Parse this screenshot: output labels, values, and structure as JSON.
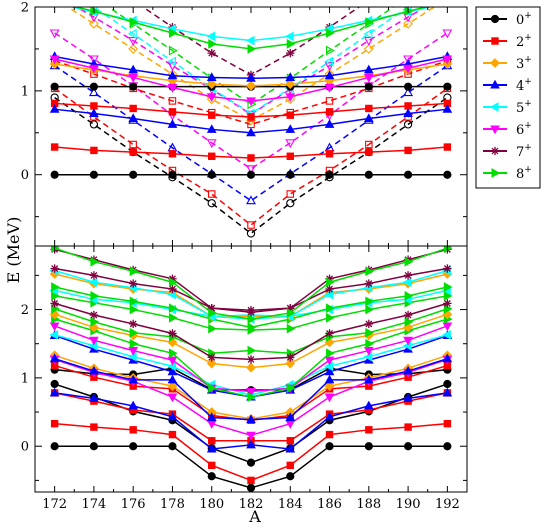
{
  "chart_data": {
    "type": "line",
    "ylabel": "E (MeV)",
    "xlabel": "A",
    "x": [
      172,
      174,
      176,
      178,
      180,
      182,
      184,
      186,
      188,
      190,
      192
    ],
    "x_ticks": [
      "172",
      "174",
      "176",
      "178",
      "180",
      "182",
      "184",
      "186",
      "188",
      "190",
      "192"
    ],
    "legend": {
      "placement": "top-right",
      "entries": [
        {
          "base": "0",
          "sup": "+",
          "color": "#000000",
          "marker": "circle"
        },
        {
          "base": "2",
          "sup": "+",
          "color": "#ff0000",
          "marker": "square"
        },
        {
          "base": "3",
          "sup": "+",
          "color": "#ffa500",
          "marker": "diamond"
        },
        {
          "base": "4",
          "sup": "+",
          "color": "#0000ff",
          "marker": "triangle-up"
        },
        {
          "base": "5",
          "sup": "+",
          "color": "#00ffff",
          "marker": "triangle-left"
        },
        {
          "base": "6",
          "sup": "+",
          "color": "#ff00ff",
          "marker": "triangle-down"
        },
        {
          "base": "7",
          "sup": "+",
          "color": "#800040",
          "marker": "star"
        },
        {
          "base": "8",
          "sup": "+",
          "color": "#00dd00",
          "marker": "triangle-right"
        }
      ]
    },
    "panels": [
      {
        "name": "top",
        "ylim": [
          -0.85,
          2.0
        ],
        "y_ticks": [
          0,
          1,
          2
        ],
        "solid_series": [
          {
            "spin": "0+",
            "values": [
              0,
              0,
              0,
              0,
              0,
              0,
              0,
              0,
              0,
              0,
              0
            ]
          },
          {
            "spin": "2+",
            "values": [
              0.33,
              0.29,
              0.27,
              0.25,
              0.22,
              0.2,
              0.22,
              0.25,
              0.27,
              0.29,
              0.33
            ]
          },
          {
            "spin": "0+",
            "values": [
              1.05,
              1.05,
              1.05,
              1.05,
              1.05,
              1.05,
              1.05,
              1.05,
              1.05,
              1.05,
              1.05
            ]
          },
          {
            "spin": "2+",
            "values": [
              0.85,
              0.82,
              0.79,
              0.75,
              0.71,
              0.69,
              0.71,
              0.75,
              0.79,
              0.82,
              0.85
            ]
          },
          {
            "spin": "4+",
            "values": [
              0.78,
              0.73,
              0.67,
              0.6,
              0.54,
              0.5,
              0.54,
              0.6,
              0.67,
              0.73,
              0.78
            ]
          },
          {
            "spin": "3+",
            "values": [
              1.32,
              1.25,
              1.18,
              1.12,
              1.08,
              1.06,
              1.08,
              1.12,
              1.18,
              1.25,
              1.32
            ]
          },
          {
            "spin": "4+",
            "values": [
              1.41,
              1.32,
              1.25,
              1.18,
              1.16,
              1.15,
              1.16,
              1.18,
              1.25,
              1.32,
              1.41
            ]
          },
          {
            "spin": "6+",
            "values": [
              1.38,
              1.27,
              1.16,
              1.04,
              0.93,
              0.88,
              0.93,
              1.04,
              1.16,
              1.27,
              1.38
            ]
          },
          {
            "spin": "5+",
            "values": [
              2.05,
              1.94,
              1.84,
              1.74,
              1.65,
              1.6,
              1.65,
              1.74,
              1.84,
              1.94,
              2.05
            ]
          },
          {
            "spin": "8+",
            "values": [
              2.06,
              1.95,
              1.82,
              1.69,
              1.56,
              1.5,
              1.56,
              1.69,
              1.82,
              1.95,
              2.06
            ]
          }
        ],
        "dashed_series": [
          {
            "spin": "0+",
            "values": [
              0.92,
              0.6,
              0.27,
              -0.03,
              -0.34,
              -0.7,
              -0.34,
              -0.03,
              0.27,
              0.6,
              0.92
            ]
          },
          {
            "spin": "2+",
            "values": [
              1.03,
              0.69,
              0.36,
              0.05,
              -0.23,
              -0.6,
              -0.23,
              0.05,
              0.36,
              0.69,
              1.03
            ]
          },
          {
            "spin": "4+",
            "values": [
              1.3,
              0.98,
              0.65,
              0.32,
              0.01,
              -0.31,
              0.01,
              0.32,
              0.65,
              0.98,
              1.3
            ]
          },
          {
            "spin": "6+",
            "values": [
              1.69,
              1.38,
              1.06,
              0.71,
              0.38,
              0.07,
              0.38,
              0.71,
              1.06,
              1.38,
              1.69
            ]
          },
          {
            "spin": "2+",
            "values": [
              1.36,
              1.2,
              1.03,
              0.88,
              0.74,
              0.6,
              0.74,
              0.88,
              1.03,
              1.2,
              1.36
            ]
          },
          {
            "spin": "3+",
            "values": [
              2.1,
              1.8,
              1.5,
              1.2,
              0.9,
              0.65,
              0.9,
              1.2,
              1.5,
              1.8,
              2.1
            ]
          },
          {
            "spin": "6+",
            "values": [
              2.15,
              1.88,
              1.6,
              1.3,
              1.02,
              0.72,
              1.02,
              1.3,
              1.6,
              1.88,
              2.15
            ]
          },
          {
            "spin": "5+",
            "values": [
              2.3,
              2.0,
              1.68,
              1.35,
              1.03,
              0.73,
              1.03,
              1.35,
              1.68,
              2.0,
              2.3
            ]
          },
          {
            "spin": "8+",
            "values": [
              2.45,
              2.12,
              1.8,
              1.48,
              1.15,
              0.84,
              1.15,
              1.48,
              1.8,
              2.12,
              2.45
            ]
          },
          {
            "spin": "7+",
            "values": [
              2.7,
              2.4,
              2.08,
              1.76,
              1.45,
              1.19,
              1.45,
              1.76,
              2.08,
              2.4,
              2.7
            ]
          }
        ]
      },
      {
        "name": "bottom",
        "ylim": [
          -0.67,
          2.93
        ],
        "y_ticks": [
          0,
          1,
          2
        ],
        "solid_series": [
          {
            "spin": "0+",
            "values": [
              0,
              0,
              0,
              0,
              -0.44,
              -0.61,
              -0.44,
              0,
              0,
              0,
              0
            ]
          },
          {
            "spin": "2+",
            "values": [
              0.33,
              0.28,
              0.24,
              0.17,
              -0.28,
              -0.5,
              -0.28,
              0.17,
              0.24,
              0.28,
              0.33
            ]
          },
          {
            "spin": "0+",
            "values": [
              0.91,
              0.72,
              0.51,
              0.38,
              -0.03,
              -0.24,
              -0.03,
              0.38,
              0.51,
              0.72,
              0.91
            ]
          },
          {
            "spin": "0+",
            "values": [
              1.12,
              1.06,
              1.05,
              1.14,
              0.83,
              0.82,
              0.83,
              1.14,
              1.05,
              1.06,
              1.12
            ]
          },
          {
            "spin": "2+",
            "values": [
              0.78,
              0.66,
              0.53,
              0.47,
              0.08,
              0.08,
              0.08,
              0.47,
              0.53,
              0.66,
              0.78
            ]
          },
          {
            "spin": "4+",
            "values": [
              0.78,
              0.7,
              0.59,
              0.43,
              -0.04,
              0.02,
              -0.04,
              0.43,
              0.59,
              0.7,
              0.78
            ]
          },
          {
            "spin": "2+",
            "values": [
              1.18,
              1.01,
              0.88,
              0.84,
              0.45,
              0.38,
              0.45,
              0.84,
              0.88,
              1.01,
              1.18
            ]
          },
          {
            "spin": "3+",
            "values": [
              1.33,
              1.14,
              1.0,
              0.88,
              0.5,
              0.4,
              0.5,
              0.88,
              1.0,
              1.14,
              1.33
            ]
          },
          {
            "spin": "6+",
            "values": [
              1.27,
              1.08,
              0.95,
              0.72,
              0.33,
              0.16,
              0.33,
              0.72,
              0.95,
              1.08,
              1.27
            ]
          },
          {
            "spin": "4+",
            "values": [
              1.28,
              1.1,
              0.97,
              0.97,
              0.42,
              0.39,
              0.42,
              0.97,
              0.97,
              1.1,
              1.28
            ]
          },
          {
            "spin": "4+",
            "values": [
              1.62,
              1.42,
              1.26,
              1.09,
              0.82,
              0.72,
              0.82,
              1.09,
              1.26,
              1.42,
              1.62
            ]
          },
          {
            "spin": "5+",
            "values": [
              1.63,
              1.47,
              1.31,
              1.17,
              0.9,
              0.75,
              0.9,
              1.17,
              1.31,
              1.47,
              1.63
            ]
          },
          {
            "spin": "6+",
            "values": [
              1.76,
              1.55,
              1.4,
              1.26,
              0.85,
              0.8,
              0.85,
              1.26,
              1.4,
              1.55,
              1.76
            ]
          },
          {
            "spin": "8+",
            "values": [
              1.86,
              1.69,
              1.5,
              1.36,
              0.85,
              0.72,
              0.85,
              1.36,
              1.5,
              1.69,
              1.86
            ]
          },
          {
            "spin": "3+",
            "values": [
              1.93,
              1.74,
              1.62,
              1.52,
              1.21,
              1.15,
              1.21,
              1.52,
              1.62,
              1.74,
              1.93
            ]
          },
          {
            "spin": "8+",
            "values": [
              2.01,
              1.82,
              1.66,
              1.6,
              1.36,
              1.4,
              1.36,
              1.6,
              1.66,
              1.82,
              2.01
            ]
          },
          {
            "spin": "7+",
            "values": [
              2.09,
              1.92,
              1.79,
              1.65,
              1.3,
              1.27,
              1.3,
              1.65,
              1.79,
              1.92,
              2.09
            ]
          },
          {
            "spin": "8+",
            "values": [
              2.2,
              2.1,
              2.0,
              1.88,
              1.72,
              1.7,
              1.72,
              1.88,
              2.0,
              2.1,
              2.2
            ]
          },
          {
            "spin": "5+",
            "values": [
              2.28,
              2.15,
              2.1,
              2.0,
              1.9,
              1.86,
              1.9,
              2.0,
              2.1,
              2.15,
              2.28
            ]
          },
          {
            "spin": "8+",
            "values": [
              2.33,
              2.2,
              2.12,
              2.02,
              1.86,
              1.74,
              1.86,
              2.02,
              2.12,
              2.2,
              2.33
            ]
          },
          {
            "spin": "3+",
            "values": [
              2.52,
              2.38,
              2.3,
              2.25,
              1.9,
              1.9,
              1.9,
              2.25,
              2.3,
              2.38,
              2.52
            ]
          },
          {
            "spin": "5+",
            "values": [
              2.57,
              2.4,
              2.32,
              2.22,
              1.9,
              1.92,
              1.9,
              2.22,
              2.32,
              2.4,
              2.57
            ]
          },
          {
            "spin": "7+",
            "values": [
              2.6,
              2.5,
              2.38,
              2.3,
              2.02,
              1.96,
              2.02,
              2.3,
              2.38,
              2.5,
              2.6
            ]
          },
          {
            "spin": "7+",
            "values": [
              2.88,
              2.73,
              2.58,
              2.45,
              2.02,
              1.99,
              2.02,
              2.45,
              2.58,
              2.73,
              2.88
            ]
          },
          {
            "spin": "8+",
            "values": [
              2.9,
              2.7,
              2.56,
              2.4,
              1.95,
              1.86,
              1.95,
              2.4,
              2.56,
              2.7,
              2.9
            ]
          }
        ]
      }
    ]
  }
}
